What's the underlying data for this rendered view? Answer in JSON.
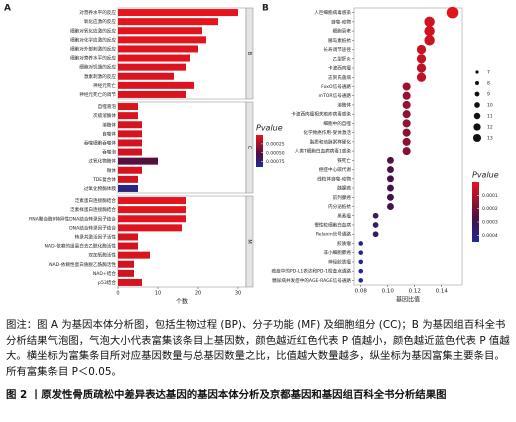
{
  "chart_data": [
    {
      "type": "bar",
      "panel": "A",
      "xlabel": "个数",
      "legend_title": "Pvalue",
      "xlim": [
        0,
        32
      ],
      "xticks": [
        0,
        10,
        20,
        30
      ],
      "clim": [
        0,
        0.0009
      ],
      "cticks": [
        0.00025,
        {
          "value": 0.0005,
          "label": "0.00050"
        },
        0.00075
      ],
      "groups": [
        {
          "name": "B",
          "categories": [
            "对营养水平的反应",
            "氧化应激的反应",
            "细胞对氧化应激的反应",
            "细胞对化学应激的反应",
            "细胞对外部刺激的反应",
            "细胞对营养水平的反应",
            "细胞对饥饿的反应",
            "激素刺激的反应",
            "神经元死亡",
            "神经元死亡的调节"
          ],
          "values": [
            30,
            25,
            21,
            22,
            20,
            18,
            17,
            14,
            19,
            17
          ],
          "pvalues": [
            1e-05,
            1e-05,
            2e-05,
            2e-05,
            3e-05,
            3e-05,
            4e-05,
            5e-05,
            4e-05,
            5e-05
          ]
        },
        {
          "name": "C",
          "categories": [
            "自噬液泡",
            "次级溶酶体",
            "溶酶体",
            "自噬体",
            "吞噬细胞吞噬体",
            "吞噬泡",
            "过氧化物酶体",
            "微体",
            "TDE复合体",
            "过氧化物酶体膜"
          ],
          "values": [
            5,
            5,
            6,
            6,
            6,
            6,
            10,
            6,
            5,
            5
          ],
          "pvalues": [
            5e-05,
            5e-05,
            6e-05,
            6e-05,
            7e-05,
            8e-05,
            0.0005,
            6e-05,
            8e-05,
            0.0008
          ]
        },
        {
          "name": "M",
          "categories": [
            "泛素蛋白连接酶结合",
            "泛素样蛋白连接酶结合",
            "RNA聚合酶II特异性DNA结合转录因子结合",
            "DNA结合转录因子结合",
            "转录共激活因子活性",
            "NAD-依赖的组蛋白去乙酰化酶活性",
            "双加氧酶活性",
            "NAD-依赖性蛋白质脱乙酰酶活性",
            "NAD+结合",
            "p53结合"
          ],
          "values": [
            17,
            17,
            17,
            16,
            5,
            5,
            8,
            4,
            4,
            6
          ],
          "pvalues": [
            2e-05,
            2e-05,
            3e-05,
            3e-05,
            6e-05,
            7e-05,
            5e-05,
            8e-05,
            8e-05,
            6e-05
          ]
        }
      ]
    },
    {
      "type": "bubble",
      "panel": "B",
      "xlabel": "基因比值",
      "legend_title": "Pvalue",
      "xlim": [
        0.075,
        0.155
      ],
      "xticks": [
        0.08,
        {
          "value": 0.1,
          "label": "0.10"
        },
        0.12,
        0.14
      ],
      "clim": [
        0,
        0.00045
      ],
      "cticks": [
        0.0001,
        0.0002,
        0.0003,
        0.0004
      ],
      "size_ticks": [
        7,
        8,
        9,
        10,
        11,
        12,
        13
      ],
      "categories": [
        "人巨细胞病毒感染",
        "自噬-动物",
        "细胞衰老",
        "胰岛素抵抗",
        "长寿调节途径",
        "乙型肝炎",
        "卡波西肉瘤",
        "志贺氏菌病",
        "FoxO信号通路",
        "mTOR信号通路",
        "溶酶体",
        "卡波西肉瘤相关疱疹病毒感染",
        "细胞中的自噬",
        "化学致癌作用-受体激活",
        "脂质和动脉粥样硬化",
        "人类T细胞白血病病毒1感染",
        "铁死亡",
        "癌症中心碳代谢",
        "线粒体自噬-动物",
        "胰腺癌",
        "前列腺癌",
        "内分泌抵抗",
        "黑素瘤",
        "慢性粒细胞白血病",
        "Relaxin信号通路",
        "胶质瘤",
        "非小细胞肺癌",
        "神经胶质瘤",
        "癌症中的PD-L1表达和PD-1检查点通路",
        "糖尿病并发症中的AGE-RAGE信号通路"
      ],
      "x": [
        0.148,
        0.131,
        0.131,
        0.131,
        0.125,
        0.125,
        0.125,
        0.125,
        0.114,
        0.114,
        0.114,
        0.114,
        0.114,
        0.114,
        0.114,
        0.114,
        0.102,
        0.102,
        0.102,
        0.102,
        0.102,
        0.102,
        0.091,
        0.091,
        0.091,
        0.08,
        0.08,
        0.08,
        0.08,
        0.08
      ],
      "counts": [
        13,
        12,
        12,
        12,
        11,
        11,
        11,
        11,
        10,
        10,
        10,
        10,
        10,
        10,
        10,
        10,
        9,
        9,
        9,
        9,
        9,
        9,
        8,
        8,
        8,
        7,
        7,
        7,
        7,
        7
      ],
      "pvalues": [
        1e-05,
        4e-05,
        4e-05,
        5e-05,
        6e-05,
        6e-05,
        7e-05,
        7e-05,
        0.00013,
        0.00014,
        0.00014,
        0.00015,
        0.00015,
        0.00016,
        0.00016,
        0.00017,
        0.00025,
        0.00026,
        0.00027,
        0.00028,
        0.00028,
        0.00029,
        0.00033,
        0.00034,
        0.00035,
        0.0004,
        0.00041,
        0.00042,
        0.00043,
        0.00044
      ]
    }
  ],
  "caption": "图注：图 A 为基因本体分析图，包括生物过程 (BP)、分子功能 (MF) 及细胞组分 (CC)；B 为基因组百科全书分析结果气泡图，气泡大小代表富集该条目上基因数，颜色越近红色代表 P 值越小，颜色越近蓝色代表 P 值越大。横坐标为富集条目所对应基因数量与总基因数量之比，比值越大数量越多，纵坐标为基因富集主要条目。所有富集条目 P＜0.05。",
  "figure_title": "图 2 丨原发性骨质疏松中差异表达基因的基因本体分析及京都基因和基因组百科全书分析结果图"
}
